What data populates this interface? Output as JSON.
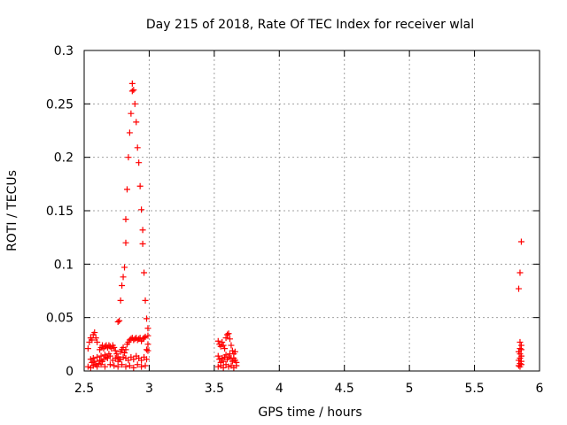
{
  "chart_data": {
    "type": "scatter",
    "title": "Day 215 of 2018, Rate Of TEC Index for receiver wlal",
    "xlabel": "GPS time / hours",
    "ylabel": "ROTI / TECUs",
    "xlim": [
      2.5,
      6
    ],
    "ylim": [
      0,
      0.3
    ],
    "x_ticks": [
      2.5,
      3,
      3.5,
      4,
      4.5,
      5,
      5.5,
      6
    ],
    "x_tick_labels": [
      "2.5",
      "3",
      "3.5",
      "4",
      "4.5",
      "5",
      "5.5",
      "6"
    ],
    "y_ticks": [
      0,
      0.05,
      0.1,
      0.15,
      0.2,
      0.25,
      0.3
    ],
    "y_tick_labels": [
      "0",
      "0.05",
      "0.1",
      "0.15",
      "0.2",
      "0.25",
      "0.3"
    ],
    "grid": true,
    "marker": "+",
    "color": "#ff0000",
    "points": [
      [
        2.53,
        0.021
      ],
      [
        2.54,
        0.027
      ],
      [
        2.55,
        0.031
      ],
      [
        2.56,
        0.029
      ],
      [
        2.57,
        0.034
      ],
      [
        2.58,
        0.036
      ],
      [
        2.59,
        0.031
      ],
      [
        2.6,
        0.027
      ],
      [
        2.55,
        0.011
      ],
      [
        2.56,
        0.008
      ],
      [
        2.57,
        0.012
      ],
      [
        2.58,
        0.009
      ],
      [
        2.59,
        0.006
      ],
      [
        2.6,
        0.013
      ],
      [
        2.61,
        0.007
      ],
      [
        2.62,
        0.01
      ],
      [
        2.63,
        0.014
      ],
      [
        2.64,
        0.009
      ],
      [
        2.65,
        0.011
      ],
      [
        2.66,
        0.015
      ],
      [
        2.67,
        0.013
      ],
      [
        2.68,
        0.012
      ],
      [
        2.69,
        0.016
      ],
      [
        2.7,
        0.014
      ],
      [
        2.62,
        0.02
      ],
      [
        2.63,
        0.022
      ],
      [
        2.64,
        0.024
      ],
      [
        2.65,
        0.021
      ],
      [
        2.66,
        0.023
      ],
      [
        2.67,
        0.024
      ],
      [
        2.68,
        0.022
      ],
      [
        2.69,
        0.024
      ],
      [
        2.7,
        0.023
      ],
      [
        2.71,
        0.021
      ],
      [
        2.72,
        0.024
      ],
      [
        2.73,
        0.022
      ],
      [
        2.74,
        0.019
      ],
      [
        2.75,
        0.016
      ],
      [
        2.76,
        0.013
      ],
      [
        2.77,
        0.011
      ],
      [
        2.53,
        0.004
      ],
      [
        2.55,
        0.003
      ],
      [
        2.57,
        0.005
      ],
      [
        2.6,
        0.004
      ],
      [
        2.63,
        0.006
      ],
      [
        2.66,
        0.004
      ],
      [
        2.7,
        0.006
      ],
      [
        2.73,
        0.005
      ],
      [
        2.76,
        0.004
      ],
      [
        2.79,
        0.006
      ],
      [
        2.82,
        0.004
      ],
      [
        2.85,
        0.005
      ],
      [
        2.88,
        0.003
      ],
      [
        2.91,
        0.006
      ],
      [
        2.94,
        0.004
      ],
      [
        2.97,
        0.005
      ],
      [
        2.72,
        0.01
      ],
      [
        2.74,
        0.012
      ],
      [
        2.76,
        0.009
      ],
      [
        2.78,
        0.011
      ],
      [
        2.8,
        0.013
      ],
      [
        2.82,
        0.012
      ],
      [
        2.84,
        0.01
      ],
      [
        2.86,
        0.013
      ],
      [
        2.88,
        0.011
      ],
      [
        2.9,
        0.014
      ],
      [
        2.92,
        0.012
      ],
      [
        2.94,
        0.01
      ],
      [
        2.96,
        0.013
      ],
      [
        2.98,
        0.011
      ],
      [
        2.76,
        0.046
      ],
      [
        2.77,
        0.047
      ],
      [
        2.78,
        0.066
      ],
      [
        2.79,
        0.08
      ],
      [
        2.8,
        0.088
      ],
      [
        2.81,
        0.097
      ],
      [
        2.82,
        0.12
      ],
      [
        2.82,
        0.142
      ],
      [
        2.83,
        0.17
      ],
      [
        2.84,
        0.2
      ],
      [
        2.85,
        0.223
      ],
      [
        2.86,
        0.241
      ],
      [
        2.87,
        0.262
      ],
      [
        2.87,
        0.269
      ],
      [
        2.88,
        0.263
      ],
      [
        2.89,
        0.25
      ],
      [
        2.9,
        0.233
      ],
      [
        2.91,
        0.209
      ],
      [
        2.92,
        0.195
      ],
      [
        2.93,
        0.173
      ],
      [
        2.94,
        0.151
      ],
      [
        2.95,
        0.132
      ],
      [
        2.95,
        0.119
      ],
      [
        2.96,
        0.092
      ],
      [
        2.97,
        0.066
      ],
      [
        2.98,
        0.049
      ],
      [
        2.99,
        0.04
      ],
      [
        2.99,
        0.033
      ],
      [
        2.78,
        0.018
      ],
      [
        2.79,
        0.02
      ],
      [
        2.8,
        0.022
      ],
      [
        2.81,
        0.017
      ],
      [
        2.82,
        0.02
      ],
      [
        2.83,
        0.025
      ],
      [
        2.84,
        0.027
      ],
      [
        2.85,
        0.029
      ],
      [
        2.86,
        0.03
      ],
      [
        2.87,
        0.031
      ],
      [
        2.88,
        0.029
      ],
      [
        2.89,
        0.03
      ],
      [
        2.9,
        0.031
      ],
      [
        2.91,
        0.029
      ],
      [
        2.92,
        0.03
      ],
      [
        2.93,
        0.031
      ],
      [
        2.94,
        0.028
      ],
      [
        2.95,
        0.03
      ],
      [
        2.96,
        0.031
      ],
      [
        2.97,
        0.032
      ],
      [
        2.98,
        0.02
      ],
      [
        2.99,
        0.019
      ],
      [
        2.99,
        0.025
      ],
      [
        3.53,
        0.028
      ],
      [
        3.54,
        0.025
      ],
      [
        3.55,
        0.023
      ],
      [
        3.56,
        0.027
      ],
      [
        3.57,
        0.024
      ],
      [
        3.58,
        0.021
      ],
      [
        3.59,
        0.031
      ],
      [
        3.6,
        0.034
      ],
      [
        3.61,
        0.035
      ],
      [
        3.62,
        0.03
      ],
      [
        3.63,
        0.024
      ],
      [
        3.64,
        0.019
      ],
      [
        3.65,
        0.016
      ],
      [
        3.66,
        0.018
      ],
      [
        3.53,
        0.014
      ],
      [
        3.54,
        0.011
      ],
      [
        3.55,
        0.008
      ],
      [
        3.56,
        0.012
      ],
      [
        3.57,
        0.009
      ],
      [
        3.58,
        0.013
      ],
      [
        3.59,
        0.015
      ],
      [
        3.6,
        0.011
      ],
      [
        3.61,
        0.013
      ],
      [
        3.62,
        0.016
      ],
      [
        3.63,
        0.012
      ],
      [
        3.64,
        0.009
      ],
      [
        3.65,
        0.012
      ],
      [
        3.66,
        0.01
      ],
      [
        3.67,
        0.008
      ],
      [
        3.53,
        0.004
      ],
      [
        3.55,
        0.005
      ],
      [
        3.57,
        0.003
      ],
      [
        3.59,
        0.006
      ],
      [
        3.61,
        0.004
      ],
      [
        3.63,
        0.005
      ],
      [
        3.65,
        0.003
      ],
      [
        3.67,
        0.005
      ],
      [
        5.86,
        0.121
      ],
      [
        5.85,
        0.092
      ],
      [
        5.84,
        0.077
      ],
      [
        5.85,
        0.027
      ],
      [
        5.86,
        0.024
      ],
      [
        5.85,
        0.021
      ],
      [
        5.86,
        0.02
      ],
      [
        5.84,
        0.018
      ],
      [
        5.85,
        0.016
      ],
      [
        5.86,
        0.014
      ],
      [
        5.85,
        0.012
      ],
      [
        5.84,
        0.01
      ],
      [
        5.86,
        0.009
      ],
      [
        5.85,
        0.007
      ],
      [
        5.86,
        0.006
      ],
      [
        5.84,
        0.005
      ],
      [
        5.85,
        0.004
      ]
    ]
  }
}
